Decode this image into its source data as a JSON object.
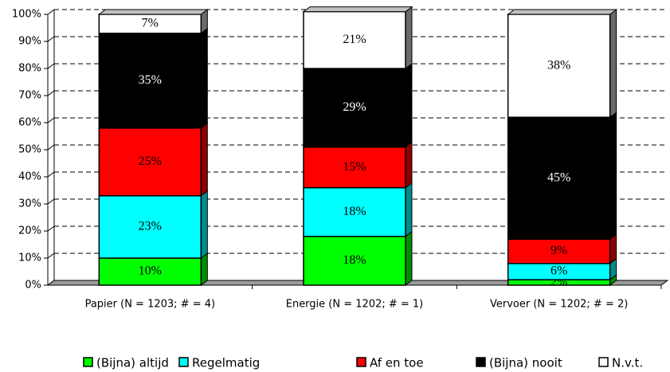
{
  "chart_data": {
    "type": "stacked_bar",
    "categories": [
      "Papier (N = 1203; # = 4)",
      "Energie (N = 1202; # = 1)",
      "Vervoer (N = 1202; # = 2)"
    ],
    "series": [
      {
        "name": "(Bijna) altijd",
        "color": "#00ff00",
        "values": [
          10,
          18,
          2
        ],
        "value_labels": [
          "10%",
          "18%",
          "2%"
        ]
      },
      {
        "name": "Regelmatig",
        "color": "#00ffff",
        "values": [
          23,
          18,
          6
        ],
        "value_labels": [
          "23%",
          "18%",
          "6%"
        ]
      },
      {
        "name": "Af en toe",
        "color": "#ff0000",
        "values": [
          25,
          15,
          9
        ],
        "value_labels": [
          "25%",
          "15%",
          "9%"
        ]
      },
      {
        "name": "(Bijna) nooit",
        "color": "#000000",
        "values": [
          35,
          29,
          45
        ],
        "value_labels": [
          "35%",
          "29%",
          "45%"
        ]
      },
      {
        "name": "N.v.t.",
        "color": "#ffffff",
        "values": [
          7,
          21,
          38
        ],
        "value_labels": [
          "7%",
          "21%",
          "38%"
        ]
      }
    ],
    "ylim": [
      0,
      100
    ],
    "yticks": [
      {
        "value": 0,
        "label": "0%"
      },
      {
        "value": 10,
        "label": "10%"
      },
      {
        "value": 20,
        "label": "20%"
      },
      {
        "value": 30,
        "label": "30%"
      },
      {
        "value": 40,
        "label": "40%"
      },
      {
        "value": 50,
        "label": "50%"
      },
      {
        "value": 60,
        "label": "60%"
      },
      {
        "value": 70,
        "label": "70%"
      },
      {
        "value": 80,
        "label": "80%"
      },
      {
        "value": 90,
        "label": "90%"
      },
      {
        "value": 100,
        "label": "100%"
      }
    ],
    "grid": true,
    "legend": "bottom"
  }
}
